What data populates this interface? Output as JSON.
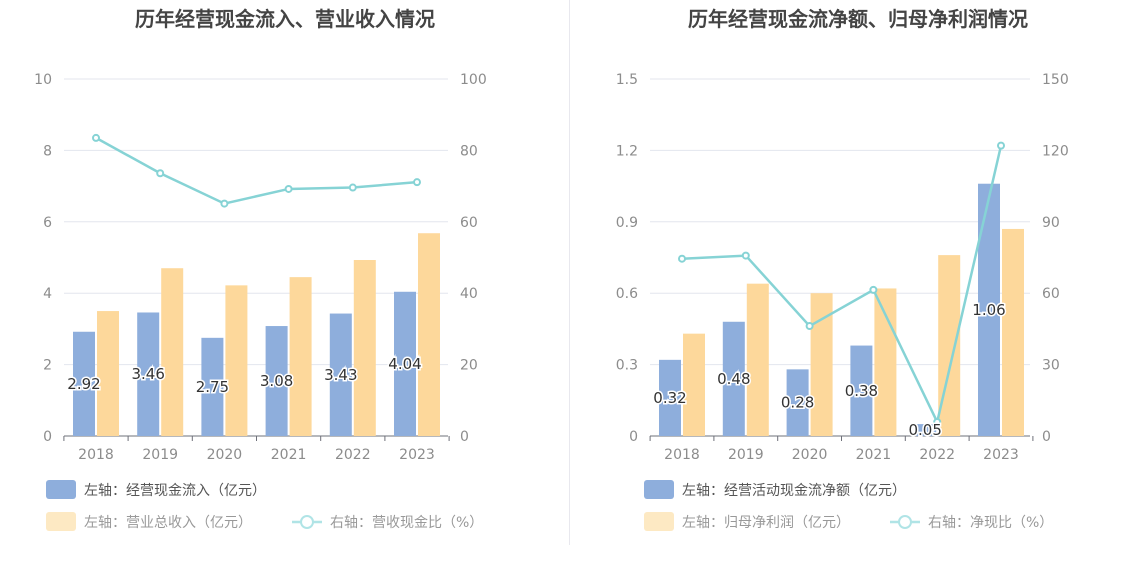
{
  "chart_data": [
    {
      "type": "bar+line",
      "title": "历年经营现金流入、营业收入情况",
      "categories": [
        "2018",
        "2019",
        "2020",
        "2021",
        "2022",
        "2023"
      ],
      "left_axis": {
        "ylim": [
          0,
          10
        ],
        "ticks": [
          "0",
          "2",
          "4",
          "6",
          "8",
          "10"
        ]
      },
      "right_axis": {
        "ylim": [
          0,
          100
        ],
        "ticks": [
          "0",
          "20",
          "40",
          "60",
          "80",
          "100"
        ]
      },
      "series": [
        {
          "name": "左轴：经营现金流入（亿元）",
          "type": "bar",
          "axis": "left",
          "color": "#8eaedc",
          "values": [
            2.92,
            3.46,
            2.75,
            3.08,
            3.43,
            4.04
          ],
          "labels": [
            "2.92",
            "3.46",
            "2.75",
            "3.08",
            "3.43",
            "4.04"
          ]
        },
        {
          "name": "左轴：营业总收入（亿元）",
          "type": "bar",
          "axis": "left",
          "color": "#fdd89b",
          "values": [
            3.5,
            4.7,
            4.22,
            4.45,
            4.93,
            5.68
          ]
        },
        {
          "name": "右轴：营收现金比（%）",
          "type": "line",
          "axis": "right",
          "color": "#86d3d5",
          "values": [
            83.5,
            73.6,
            65.1,
            69.2,
            69.6,
            71.1
          ]
        }
      ]
    },
    {
      "type": "bar+line",
      "title": "历年经营现金流净额、归母净利润情况",
      "categories": [
        "2018",
        "2019",
        "2020",
        "2021",
        "2022",
        "2023"
      ],
      "left_axis": {
        "ylim": [
          0,
          1.5
        ],
        "ticks": [
          "0",
          "0.3",
          "0.6",
          "0.9",
          "1.2",
          "1.5"
        ]
      },
      "right_axis": {
        "ylim": [
          0,
          150
        ],
        "ticks": [
          "0",
          "30",
          "60",
          "90",
          "120",
          "150"
        ]
      },
      "series": [
        {
          "name": "左轴：经营活动现金流净额（亿元）",
          "type": "bar",
          "axis": "left",
          "color": "#8eaedc",
          "values": [
            0.32,
            0.48,
            0.28,
            0.38,
            0.05,
            1.06
          ],
          "labels": [
            "0.32",
            "0.48",
            "0.28",
            "0.38",
            "0.05",
            "1.06"
          ]
        },
        {
          "name": "左轴：归母净利润（亿元）",
          "type": "bar",
          "axis": "left",
          "color": "#fdd89b",
          "values": [
            0.43,
            0.64,
            0.6,
            0.62,
            0.76,
            0.87
          ]
        },
        {
          "name": "右轴：净现比（%）",
          "type": "line",
          "axis": "right",
          "color": "#86d3d5",
          "values": [
            74.5,
            75.8,
            46.2,
            61.4,
            5.9,
            122.0
          ]
        }
      ]
    }
  ]
}
